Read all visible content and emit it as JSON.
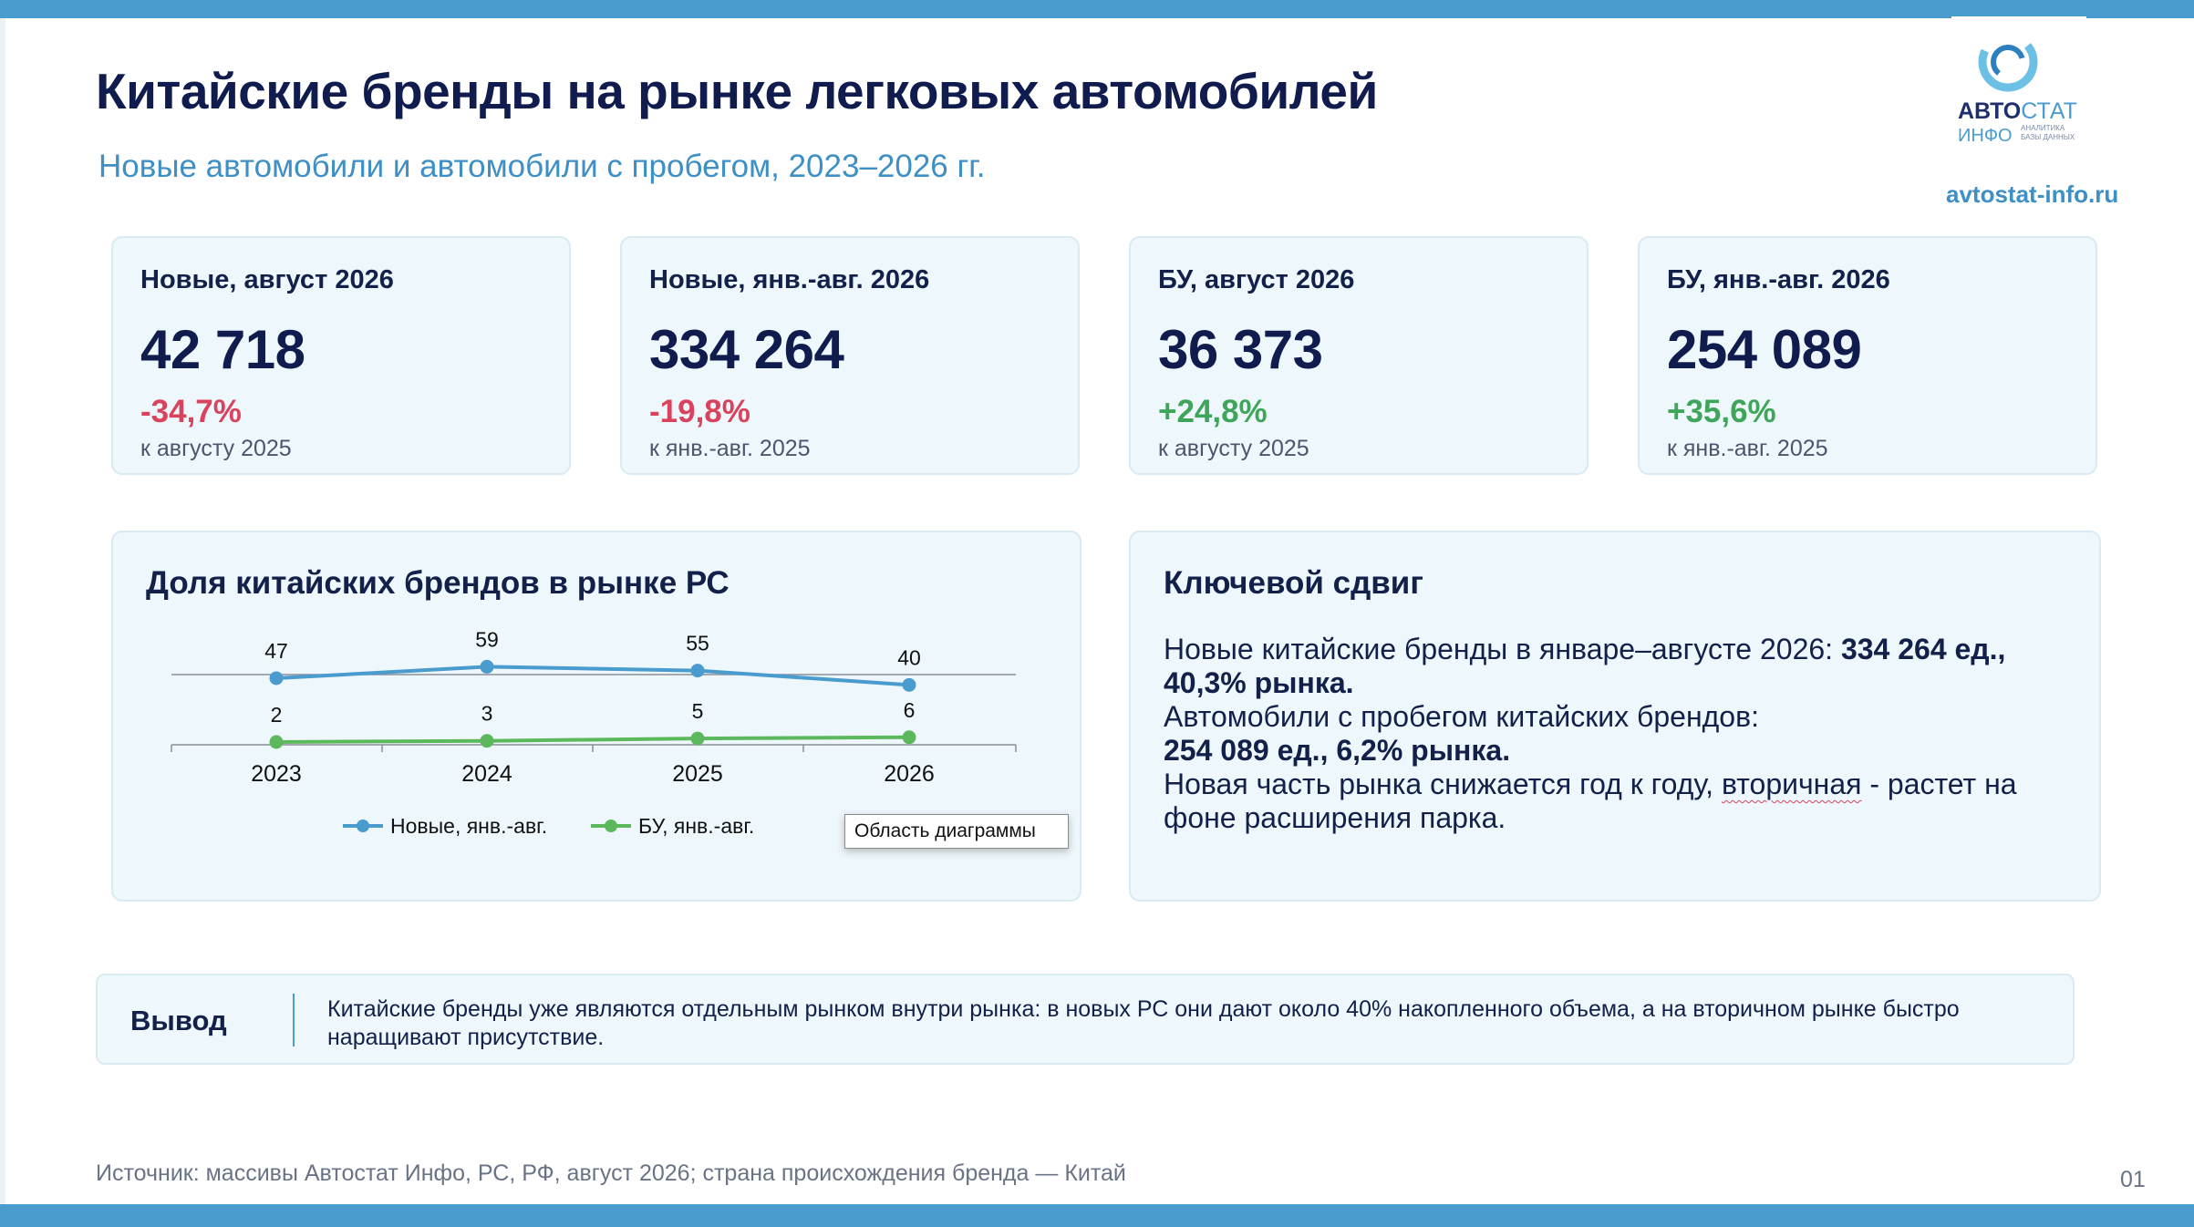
{
  "header": {
    "title": "Китайские бренды на рынке легковых автомобилей",
    "subtitle": "Новые автомобили и автомобили с пробегом, 2023–2026 гг."
  },
  "logo": {
    "word_bold": "АВТО",
    "word_light": "СТАТ",
    "word2": "ИНФО",
    "tagline": "АНАЛИТИКА БАЗЫ ДАННЫХ",
    "site": "avtostat-info.ru"
  },
  "kpis": [
    {
      "label": "Новые, август 2026",
      "value": "42 718",
      "delta": "-34,7%",
      "note": "к августу 2025"
    },
    {
      "label": "Новые, янв.-авг. 2026",
      "value": "334 264",
      "delta": "-19,8%",
      "note": "к янв.-авг. 2025"
    },
    {
      "label": "БУ, август 2026",
      "value": "36 373",
      "delta": "+24,8%",
      "note": "к августу 2025"
    },
    {
      "label": "БУ, янв.-авг. 2026",
      "value": "254 089",
      "delta": "+35,6%",
      "note": "к янв.-авг. 2025"
    }
  ],
  "colors": {
    "accent": "#4a9ccf",
    "negative": "#d9435e",
    "positive": "#3fa55a",
    "navy": "#0f1c4d"
  },
  "chart_panel": {
    "title": "Доля китайских брендов в рынке РС",
    "tooltip": "Область диаграммы"
  },
  "chart_data": {
    "type": "line",
    "title": "Доля китайских брендов в рынке РС",
    "categories": [
      "2023",
      "2024",
      "2025",
      "2026"
    ],
    "series": [
      {
        "name": "Новые, янв.-авг.",
        "values": [
          47,
          59,
          55,
          40
        ],
        "color": "#4a9ccf"
      },
      {
        "name": "БУ, янв.-авг.",
        "values": [
          2,
          3,
          5,
          6
        ],
        "color": "#5cb85c"
      }
    ],
    "legend": "bottom",
    "grid": false
  },
  "shift": {
    "title": "Ключевой сдвиг",
    "p1_text": "Новые китайские бренды в январе–августе 2026: ",
    "p1_bold": "334 264 ед., 40,3% рынка.",
    "p2_text": "Автомобили с пробегом китайских брендов:",
    "p2_bold": "254 089 ед., 6,2% рынка.",
    "p3_before": "Новая часть рынка снижается год к году, ",
    "p3_squiggle": "вторичная",
    "p3_after": " - растет на фоне расширения парка."
  },
  "conclusion": {
    "label": "Вывод",
    "text": "Китайские бренды уже являются отдельным рынком внутри рынка: в новых РС они дают около 40% накопленного объема, а на вторичном рынке быстро наращивают присутствие."
  },
  "footer": {
    "source": "Источник: массивы Автостат Инфо, РС, РФ, август 2026; страна происхождения бренда — Китай",
    "page": "01"
  }
}
